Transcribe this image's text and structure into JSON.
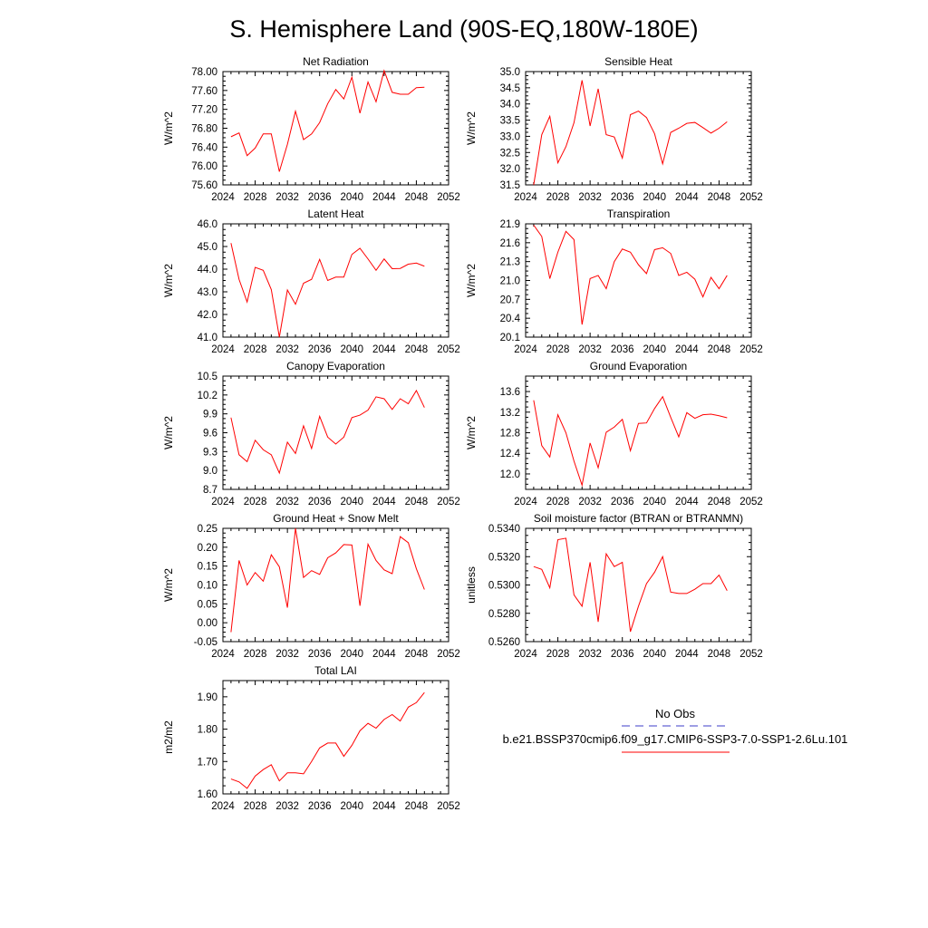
{
  "title": "S. Hemisphere Land (90S-EQ,180W-180E)",
  "colors": {
    "series": "#ff0000",
    "obs": "#3c3cc8",
    "axis": "#000000"
  },
  "legend": {
    "obs_label": "No Obs",
    "case_label": "b.e21.BSSP370cmip6.f09_g17.CMIP6-SSP3-7.0-SSP1-2.6Lu.101"
  },
  "chart_data": [
    {
      "type": "line",
      "title": "Net Radiation",
      "ylabel": "W/m^2",
      "xlim": [
        2024,
        2052
      ],
      "xticks": [
        "2024",
        "2028",
        "2032",
        "2036",
        "2040",
        "2044",
        "2048",
        "2052"
      ],
      "ylim": [
        75.6,
        78.0
      ],
      "yticks": [
        "75.60",
        "76.00",
        "76.40",
        "76.80",
        "77.20",
        "77.60",
        "78.00"
      ],
      "x": [
        2025,
        2026,
        2027,
        2028,
        2029,
        2030,
        2031,
        2032,
        2033,
        2034,
        2035,
        2036,
        2037,
        2038,
        2039,
        2040,
        2041,
        2042,
        2043,
        2044,
        2045,
        2046,
        2047,
        2048,
        2049
      ],
      "series": [
        {
          "name": "b.e21.BSSP370cmip6.f09_g17.CMIP6-SSP3-7.0-SSP1-2.6Lu.101",
          "values": [
            76.62,
            76.7,
            76.22,
            76.38,
            76.68,
            76.68,
            75.88,
            76.46,
            77.16,
            76.56,
            76.68,
            76.92,
            77.32,
            77.62,
            77.42,
            77.88,
            77.12,
            77.78,
            77.36,
            78.02,
            77.56,
            77.52,
            77.52,
            77.66,
            77.67
          ]
        }
      ]
    },
    {
      "type": "line",
      "title": "Sensible Heat",
      "ylabel": "W/m^2",
      "xlim": [
        2024,
        2052
      ],
      "xticks": [
        "2024",
        "2028",
        "2032",
        "2036",
        "2040",
        "2044",
        "2048",
        "2052"
      ],
      "ylim": [
        31.5,
        35.0
      ],
      "yticks": [
        "31.5",
        "32.0",
        "32.5",
        "33.0",
        "33.5",
        "34.0",
        "34.5",
        "35.0"
      ],
      "x": [
        2025,
        2026,
        2027,
        2028,
        2029,
        2030,
        2031,
        2032,
        2033,
        2034,
        2035,
        2036,
        2037,
        2038,
        2039,
        2040,
        2041,
        2042,
        2043,
        2044,
        2045,
        2046,
        2047,
        2048,
        2049
      ],
      "series": [
        {
          "name": "b.e21.BSSP370cmip6.f09_g17.CMIP6-SSP3-7.0-SSP1-2.6Lu.101",
          "values": [
            31.5,
            33.05,
            33.62,
            32.18,
            32.68,
            33.42,
            34.73,
            33.32,
            34.47,
            33.05,
            32.98,
            32.33,
            33.67,
            33.78,
            33.58,
            33.08,
            32.15,
            33.12,
            33.25,
            33.4,
            33.43,
            33.27,
            33.1,
            33.25,
            33.45
          ]
        }
      ]
    },
    {
      "type": "line",
      "title": "Latent Heat",
      "ylabel": "W/m^2",
      "xlim": [
        2024,
        2052
      ],
      "xticks": [
        "2024",
        "2028",
        "2032",
        "2036",
        "2040",
        "2044",
        "2048",
        "2052"
      ],
      "ylim": [
        41.0,
        46.0
      ],
      "yticks": [
        "41.0",
        "42.0",
        "43.0",
        "44.0",
        "45.0",
        "46.0"
      ],
      "x": [
        2025,
        2026,
        2027,
        2028,
        2029,
        2030,
        2031,
        2032,
        2033,
        2034,
        2035,
        2036,
        2037,
        2038,
        2039,
        2040,
        2041,
        2042,
        2043,
        2044,
        2045,
        2046,
        2047,
        2048,
        2049
      ],
      "series": [
        {
          "name": "b.e21.BSSP370cmip6.f09_g17.CMIP6-SSP3-7.0-SSP1-2.6Lu.101",
          "values": [
            45.15,
            43.55,
            42.55,
            44.08,
            43.95,
            43.1,
            41.0,
            43.08,
            42.45,
            43.38,
            43.55,
            44.43,
            43.5,
            43.65,
            43.65,
            44.65,
            44.92,
            44.45,
            43.95,
            44.45,
            44.02,
            44.03,
            44.22,
            44.27,
            44.13
          ]
        }
      ]
    },
    {
      "type": "line",
      "title": "Transpiration",
      "ylabel": "W/m^2",
      "xlim": [
        2024,
        2052
      ],
      "xticks": [
        "2024",
        "2028",
        "2032",
        "2036",
        "2040",
        "2044",
        "2048",
        "2052"
      ],
      "ylim": [
        20.1,
        21.9
      ],
      "yticks": [
        "20.1",
        "20.4",
        "20.7",
        "21.0",
        "21.3",
        "21.6",
        "21.9"
      ],
      "x": [
        2025,
        2026,
        2027,
        2028,
        2029,
        2030,
        2031,
        2032,
        2033,
        2034,
        2035,
        2036,
        2037,
        2038,
        2039,
        2040,
        2041,
        2042,
        2043,
        2044,
        2045,
        2046,
        2047,
        2048,
        2049
      ],
      "series": [
        {
          "name": "b.e21.BSSP370cmip6.f09_g17.CMIP6-SSP3-7.0-SSP1-2.6Lu.101",
          "values": [
            21.88,
            21.7,
            21.03,
            21.45,
            21.78,
            21.65,
            20.3,
            21.03,
            21.08,
            20.87,
            21.3,
            21.5,
            21.45,
            21.25,
            21.11,
            21.49,
            21.52,
            21.43,
            21.08,
            21.13,
            21.02,
            20.74,
            21.05,
            20.87,
            21.08
          ]
        }
      ]
    },
    {
      "type": "line",
      "title": "Canopy Evaporation",
      "ylabel": "W/m^2",
      "xlim": [
        2024,
        2052
      ],
      "xticks": [
        "2024",
        "2028",
        "2032",
        "2036",
        "2040",
        "2044",
        "2048",
        "2052"
      ],
      "ylim": [
        8.7,
        10.5
      ],
      "yticks": [
        "8.7",
        "9.0",
        "9.3",
        "9.6",
        "9.9",
        "10.2",
        "10.5"
      ],
      "x": [
        2025,
        2026,
        2027,
        2028,
        2029,
        2030,
        2031,
        2032,
        2033,
        2034,
        2035,
        2036,
        2037,
        2038,
        2039,
        2040,
        2041,
        2042,
        2043,
        2044,
        2045,
        2046,
        2047,
        2048,
        2049
      ],
      "series": [
        {
          "name": "b.e21.BSSP370cmip6.f09_g17.CMIP6-SSP3-7.0-SSP1-2.6Lu.101",
          "values": [
            9.84,
            9.25,
            9.14,
            9.48,
            9.33,
            9.25,
            8.96,
            9.45,
            9.27,
            9.71,
            9.35,
            9.86,
            9.53,
            9.42,
            9.53,
            9.84,
            9.88,
            9.96,
            10.17,
            10.14,
            9.97,
            10.14,
            10.06,
            10.27,
            10.0
          ]
        }
      ]
    },
    {
      "type": "line",
      "title": "Ground Evaporation",
      "ylabel": "W/m^2",
      "xlim": [
        2024,
        2052
      ],
      "xticks": [
        "2024",
        "2028",
        "2032",
        "2036",
        "2040",
        "2044",
        "2048",
        "2052"
      ],
      "ylim": [
        11.7,
        13.9
      ],
      "yticks": [
        "12.0",
        "12.4",
        "12.8",
        "13.2",
        "13.6"
      ],
      "x": [
        2025,
        2026,
        2027,
        2028,
        2029,
        2030,
        2031,
        2032,
        2033,
        2034,
        2035,
        2036,
        2037,
        2038,
        2039,
        2040,
        2041,
        2042,
        2043,
        2044,
        2045,
        2046,
        2047,
        2048,
        2049
      ],
      "series": [
        {
          "name": "b.e21.BSSP370cmip6.f09_g17.CMIP6-SSP3-7.0-SSP1-2.6Lu.101",
          "values": [
            13.43,
            12.55,
            12.33,
            13.15,
            12.8,
            12.25,
            11.78,
            12.6,
            12.12,
            12.81,
            12.91,
            13.06,
            12.45,
            12.98,
            12.99,
            13.27,
            13.5,
            13.1,
            12.72,
            13.19,
            13.08,
            13.15,
            13.16,
            13.13,
            13.09
          ]
        }
      ]
    },
    {
      "type": "line",
      "title": "Ground Heat + Snow Melt",
      "ylabel": "W/m^2",
      "xlim": [
        2024,
        2052
      ],
      "xticks": [
        "2024",
        "2028",
        "2032",
        "2036",
        "2040",
        "2044",
        "2048",
        "2052"
      ],
      "ylim": [
        -0.05,
        0.25
      ],
      "yticks": [
        "-0.05",
        "0.00",
        "0.05",
        "0.10",
        "0.15",
        "0.20",
        "0.25"
      ],
      "x": [
        2025,
        2026,
        2027,
        2028,
        2029,
        2030,
        2031,
        2032,
        2033,
        2034,
        2035,
        2036,
        2037,
        2038,
        2039,
        2040,
        2041,
        2042,
        2043,
        2044,
        2045,
        2046,
        2047,
        2048,
        2049
      ],
      "series": [
        {
          "name": "b.e21.BSSP370cmip6.f09_g17.CMIP6-SSP3-7.0-SSP1-2.6Lu.101",
          "values": [
            -0.025,
            0.165,
            0.1,
            0.133,
            0.11,
            0.18,
            0.148,
            0.04,
            0.25,
            0.12,
            0.138,
            0.128,
            0.172,
            0.185,
            0.207,
            0.206,
            0.045,
            0.208,
            0.165,
            0.14,
            0.13,
            0.228,
            0.212,
            0.143,
            0.088
          ]
        }
      ]
    },
    {
      "type": "line",
      "title": "Soil moisture factor (BTRAN or BTRANMN)",
      "ylabel": "unitless",
      "xlim": [
        2024,
        2052
      ],
      "xticks": [
        "2024",
        "2028",
        "2032",
        "2036",
        "2040",
        "2044",
        "2048",
        "2052"
      ],
      "ylim": [
        0.526,
        0.534
      ],
      "yticks": [
        "0.5260",
        "0.5280",
        "0.5300",
        "0.5320",
        "0.5340"
      ],
      "x": [
        2025,
        2026,
        2027,
        2028,
        2029,
        2030,
        2031,
        2032,
        2033,
        2034,
        2035,
        2036,
        2037,
        2038,
        2039,
        2040,
        2041,
        2042,
        2043,
        2044,
        2045,
        2046,
        2047,
        2048,
        2049
      ],
      "series": [
        {
          "name": "b.e21.BSSP370cmip6.f09_g17.CMIP6-SSP3-7.0-SSP1-2.6Lu.101",
          "values": [
            0.5313,
            0.5311,
            0.5298,
            0.5332,
            0.5333,
            0.5293,
            0.5285,
            0.5316,
            0.5274,
            0.5322,
            0.5313,
            0.5316,
            0.5267,
            0.5285,
            0.5301,
            0.5309,
            0.532,
            0.5295,
            0.5294,
            0.5294,
            0.5297,
            0.5301,
            0.5301,
            0.5307,
            0.5296
          ]
        }
      ]
    },
    {
      "type": "line",
      "title": "Total LAI",
      "ylabel": "m2/m2",
      "xlim": [
        2024,
        2052
      ],
      "xticks": [
        "2024",
        "2028",
        "2032",
        "2036",
        "2040",
        "2044",
        "2048",
        "2052"
      ],
      "ylim": [
        1.6,
        1.95
      ],
      "yticks": [
        "1.60",
        "1.70",
        "1.80",
        "1.90"
      ],
      "x": [
        2025,
        2026,
        2027,
        2028,
        2029,
        2030,
        2031,
        2032,
        2033,
        2034,
        2035,
        2036,
        2037,
        2038,
        2039,
        2040,
        2041,
        2042,
        2043,
        2044,
        2045,
        2046,
        2047,
        2048,
        2049
      ],
      "series": [
        {
          "name": "b.e21.BSSP370cmip6.f09_g17.CMIP6-SSP3-7.0-SSP1-2.6Lu.101",
          "values": [
            1.646,
            1.637,
            1.617,
            1.655,
            1.675,
            1.69,
            1.64,
            1.665,
            1.665,
            1.662,
            1.7,
            1.742,
            1.757,
            1.757,
            1.716,
            1.75,
            1.795,
            1.818,
            1.803,
            1.83,
            1.845,
            1.825,
            1.868,
            1.882,
            1.913
          ]
        }
      ]
    }
  ]
}
